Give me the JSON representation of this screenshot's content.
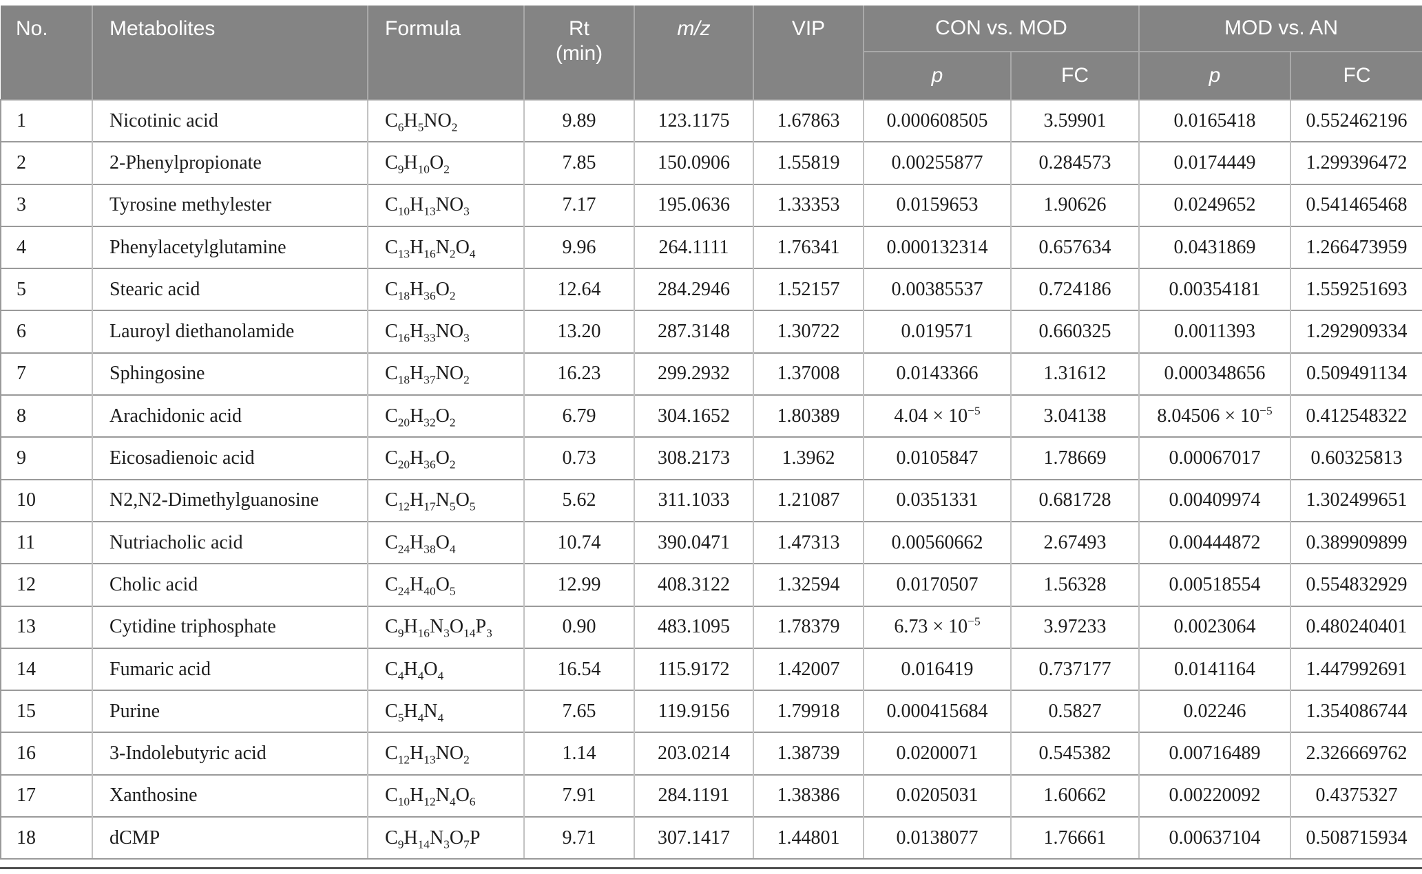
{
  "colors": {
    "header_bg": "#848484",
    "header_text": "#ffffff",
    "body_text": "#1d1d1d",
    "row_line": "#9a9a9a",
    "column_line": "#c2c2c2",
    "header_divider": "#a9a9a9",
    "bottom_rule": "#4f4f4f"
  },
  "table": {
    "columns": [
      {
        "key": "no",
        "label": "No."
      },
      {
        "key": "metabolite",
        "label": "Metabolites"
      },
      {
        "key": "formula",
        "label": "Formula"
      },
      {
        "key": "rt",
        "label": "Rt\n(min)"
      },
      {
        "key": "mz",
        "label": "m/z",
        "italic": true
      },
      {
        "key": "vip",
        "label": "VIP"
      }
    ],
    "groups": [
      {
        "label": "CON vs. MOD",
        "sub": [
          {
            "label": "p",
            "italic": true
          },
          {
            "label": "FC"
          }
        ]
      },
      {
        "label": "MOD vs. AN",
        "sub": [
          {
            "label": "p",
            "italic": true
          },
          {
            "label": "FC"
          }
        ]
      }
    ],
    "rows": [
      [
        "1",
        "Nicotinic acid",
        "C~6~H~5~NO~2~",
        "9.89",
        "123.1175",
        "1.67863",
        "0.000608505",
        "3.59901",
        "0.0165418",
        "0.552462196"
      ],
      [
        "2",
        "2-Phenylpropionate",
        "C~9~H~10~O~2~",
        "7.85",
        "150.0906",
        "1.55819",
        "0.00255877",
        "0.284573",
        "0.0174449",
        "1.299396472"
      ],
      [
        "3",
        "Tyrosine methylester",
        "C~10~H~13~NO~3~",
        "7.17",
        "195.0636",
        "1.33353",
        "0.0159653",
        "1.90626",
        "0.0249652",
        "0.541465468"
      ],
      [
        "4",
        "Phenylacetylglutamine",
        "C~13~H~16~N~2~O~4~",
        "9.96",
        "264.1111",
        "1.76341",
        "0.000132314",
        "0.657634",
        "0.0431869",
        "1.266473959"
      ],
      [
        "5",
        "Stearic acid",
        "C~18~H~36~O~2~",
        "12.64",
        "284.2946",
        "1.52157",
        "0.00385537",
        "0.724186",
        "0.00354181",
        "1.559251693"
      ],
      [
        "6",
        "Lauroyl diethanolamide",
        "C~16~H~33~NO~3~",
        "13.20",
        "287.3148",
        "1.30722",
        "0.019571",
        "0.660325",
        "0.0011393",
        "1.292909334"
      ],
      [
        "7",
        "Sphingosine",
        "C~18~H~37~NO~2~",
        "16.23",
        "299.2932",
        "1.37008",
        "0.0143366",
        "1.31612",
        "0.000348656",
        "0.509491134"
      ],
      [
        "8",
        "Arachidonic acid",
        "C~20~H~32~O~2~",
        "6.79",
        "304.1652",
        "1.80389",
        "4.04 × 10^−5^",
        "3.04138",
        "8.04506 × 10^−5^",
        "0.412548322"
      ],
      [
        "9",
        "Eicosadienoic acid",
        "C~20~H~36~O~2~",
        "0.73",
        "308.2173",
        "1.3962",
        "0.0105847",
        "1.78669",
        "0.00067017",
        "0.60325813"
      ],
      [
        "10",
        "N2,N2-Dimethylguanosine",
        "C~12~H~17~N~5~O~5~",
        "5.62",
        "311.1033",
        "1.21087",
        "0.0351331",
        "0.681728",
        "0.00409974",
        "1.302499651"
      ],
      [
        "11",
        "Nutriacholic acid",
        "C~24~H~38~O~4~",
        "10.74",
        "390.0471",
        "1.47313",
        "0.00560662",
        "2.67493",
        "0.00444872",
        "0.389909899"
      ],
      [
        "12",
        "Cholic acid",
        "C~24~H~40~O~5~",
        "12.99",
        "408.3122",
        "1.32594",
        "0.0170507",
        "1.56328",
        "0.00518554",
        "0.554832929"
      ],
      [
        "13",
        "Cytidine triphosphate",
        "C~9~H~16~N~3~O~14~P~3~",
        "0.90",
        "483.1095",
        "1.78379",
        "6.73 × 10^−5^",
        "3.97233",
        "0.0023064",
        "0.480240401"
      ],
      [
        "14",
        "Fumaric acid",
        "C~4~H~4~O~4~",
        "16.54",
        "115.9172",
        "1.42007",
        "0.016419",
        "0.737177",
        "0.0141164",
        "1.447992691"
      ],
      [
        "15",
        "Purine",
        "C~5~H~4~N~4~",
        "7.65",
        "119.9156",
        "1.79918",
        "0.000415684",
        "0.5827",
        "0.02246",
        "1.354086744"
      ],
      [
        "16",
        "3-Indolebutyric acid",
        "C~12~H~13~NO~2~",
        "1.14",
        "203.0214",
        "1.38739",
        "0.0200071",
        "0.545382",
        "0.00716489",
        "2.326669762"
      ],
      [
        "17",
        "Xanthosine",
        "C~10~H~12~N~4~O~6~",
        "7.91",
        "284.1191",
        "1.38386",
        "0.0205031",
        "1.60662",
        "0.00220092",
        "0.4375327"
      ],
      [
        "18",
        "dCMP",
        "C~9~H~14~N~3~O~7~P",
        "9.71",
        "307.1417",
        "1.44801",
        "0.0138077",
        "1.76661",
        "0.00637104",
        "0.508715934"
      ]
    ]
  }
}
